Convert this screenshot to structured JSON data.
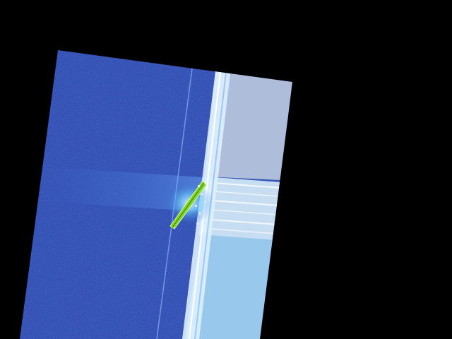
{
  "image": {
    "kind": "rotated false-color scan on black background",
    "colors": {
      "background": "#000000",
      "water": "#1a3aa8",
      "water_dark": "#0f2a86",
      "structure_upper": "#a9b9d2",
      "structure_lower": "#8fc6e8",
      "structure_edge": "#dcefff",
      "vessel": "#7fd32a",
      "vessel_glow": "#8fe0ff"
    },
    "icons": {
      "vessel": "vessel-icon"
    }
  }
}
